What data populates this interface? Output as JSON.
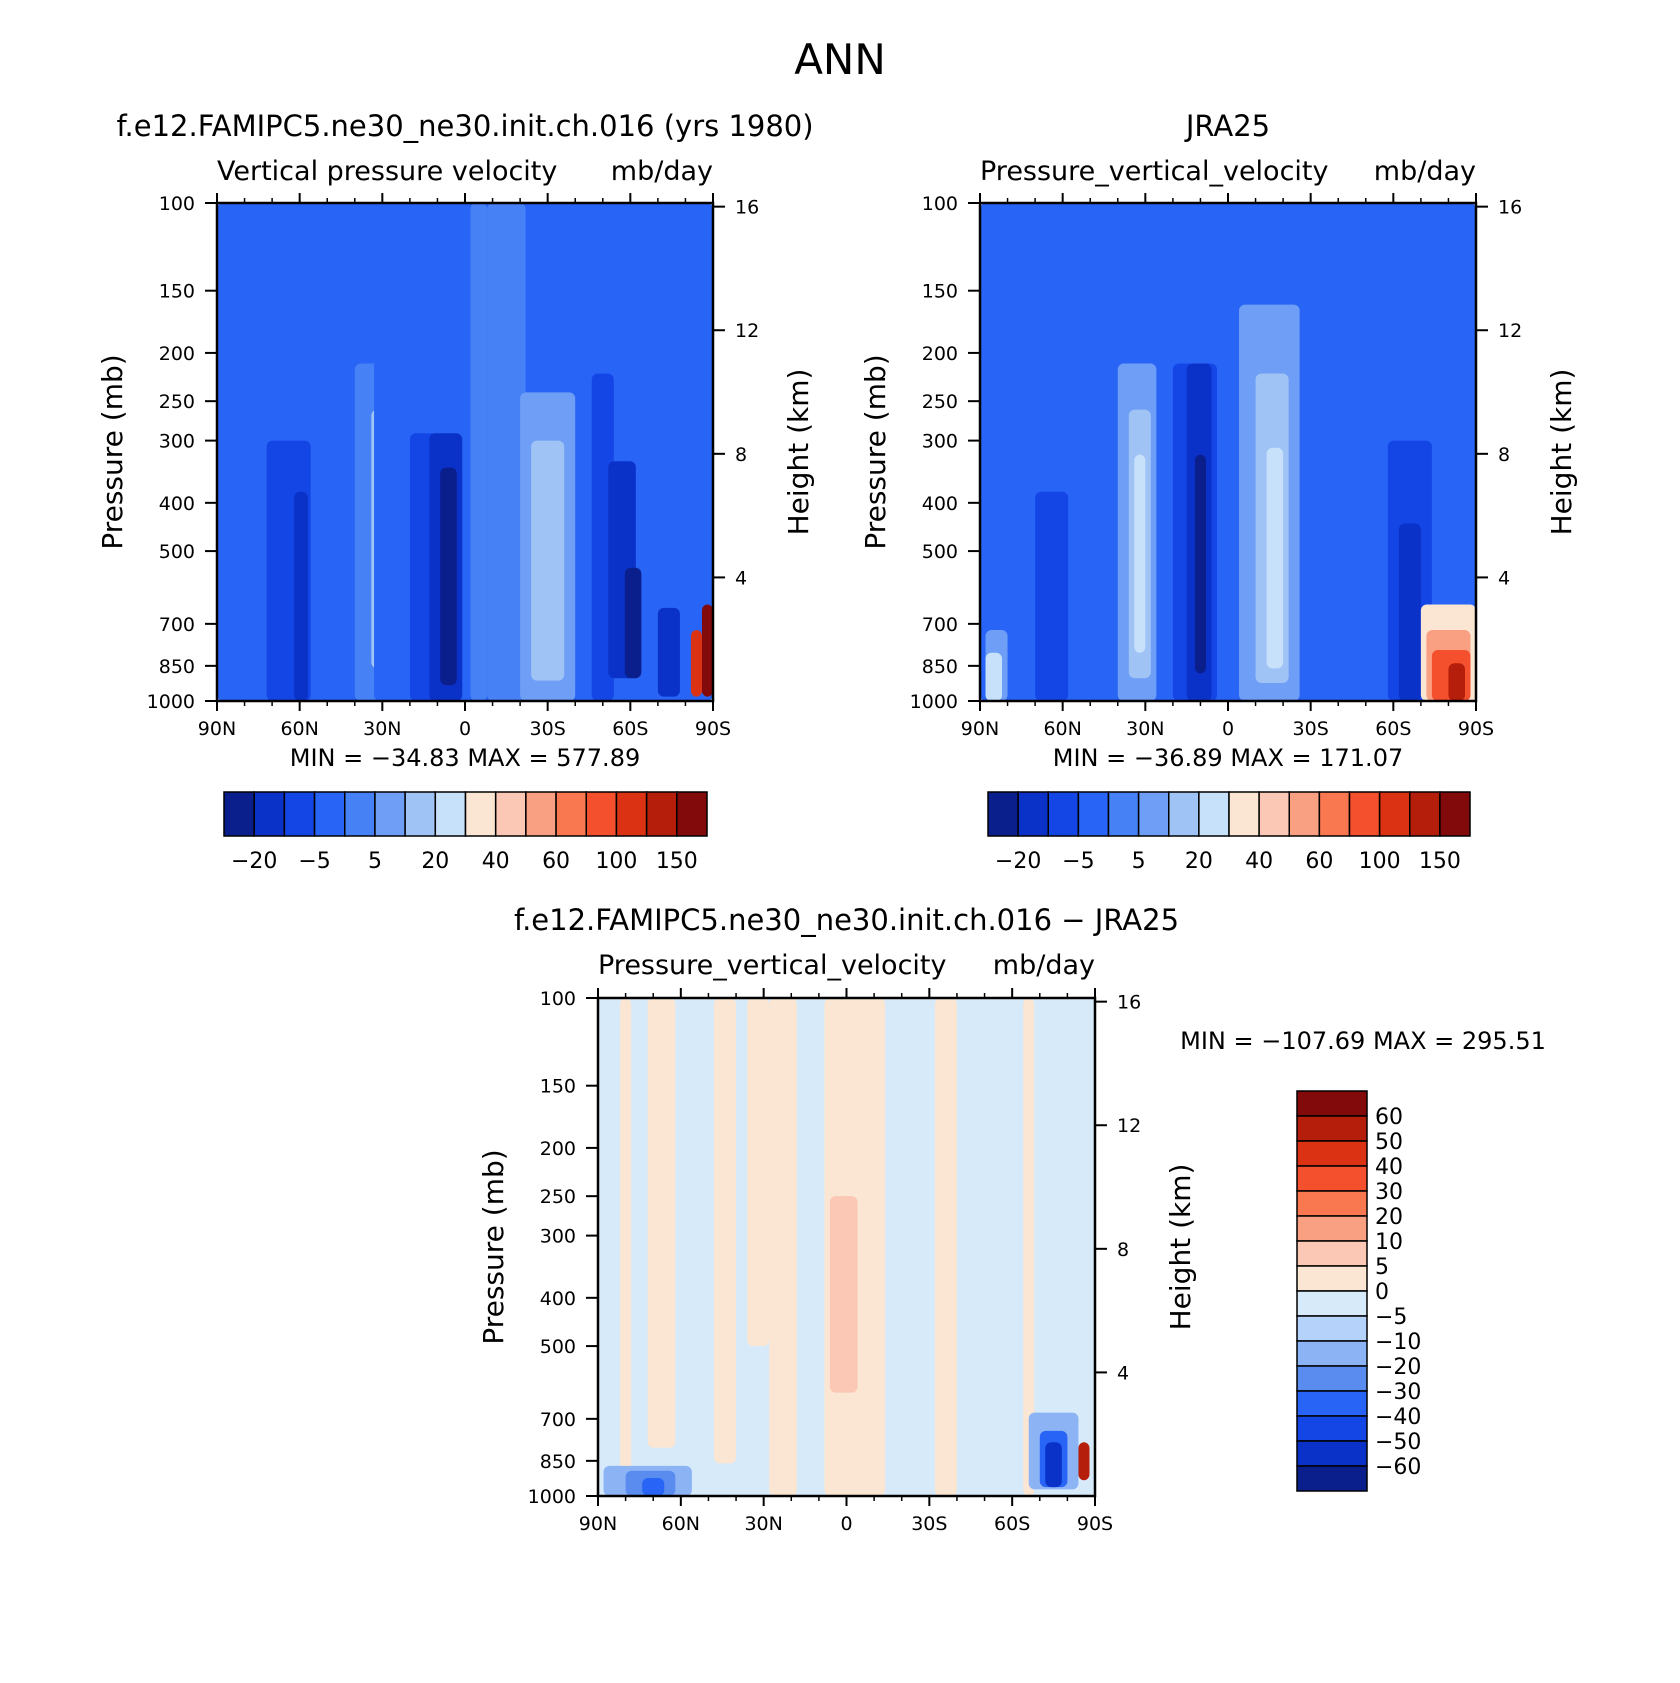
{
  "figure_title": "ANN",
  "chart_data": [
    {
      "type": "heatmap",
      "panel_title": "f.e12.FAMIPC5.ne30_ne30.init.ch.016 (yrs 1980)",
      "left_subtitle": "Vertical pressure velocity",
      "right_subtitle": "mb/day",
      "ylabel": "Pressure (mb)",
      "y2label": "Height (km)",
      "x_ticks": [
        "90N",
        "60N",
        "30N",
        "0",
        "30S",
        "60S",
        "90S"
      ],
      "y_ticks": [
        "100",
        "150",
        "200",
        "250",
        "300",
        "400",
        "500",
        "700",
        "850",
        "1000"
      ],
      "y2_ticks": [
        "16",
        "12",
        "8",
        "4"
      ],
      "stats": {
        "min_label": "MIN",
        "min_value": "−34.83",
        "max_label": "MAX",
        "max_value": "577.89"
      },
      "colorbar_labels": [
        "−20",
        "−5",
        "5",
        "20",
        "40",
        "60",
        "100",
        "150"
      ],
      "colors": [
        "#0a1e8c",
        "#0a32c8",
        "#1446e6",
        "#2864f5",
        "#4682f5",
        "#6e9ef5",
        "#a0c3f5",
        "#c8e1fa",
        "#fae6d2",
        "#fac8b4",
        "#faa082",
        "#fa7850",
        "#f5502d",
        "#dc3214",
        "#b41e0a",
        "#820a0a"
      ]
    },
    {
      "type": "heatmap",
      "panel_title": "JRA25",
      "left_subtitle": "Pressure_vertical_velocity",
      "right_subtitle": "mb/day",
      "ylabel": "Pressure (mb)",
      "y2label": "Height (km)",
      "x_ticks": [
        "90N",
        "60N",
        "30N",
        "0",
        "30S",
        "60S",
        "90S"
      ],
      "y_ticks": [
        "100",
        "150",
        "200",
        "250",
        "300",
        "400",
        "500",
        "700",
        "850",
        "1000"
      ],
      "y2_ticks": [
        "16",
        "12",
        "8",
        "4"
      ],
      "stats": {
        "min_label": "MIN",
        "min_value": "−36.89",
        "max_label": "MAX",
        "max_value": "171.07"
      },
      "colorbar_labels": [
        "−20",
        "−5",
        "5",
        "20",
        "40",
        "60",
        "100",
        "150"
      ],
      "colors": [
        "#0a1e8c",
        "#0a32c8",
        "#1446e6",
        "#2864f5",
        "#4682f5",
        "#6e9ef5",
        "#a0c3f5",
        "#c8e1fa",
        "#fae6d2",
        "#fac8b4",
        "#faa082",
        "#fa7850",
        "#f5502d",
        "#dc3214",
        "#b41e0a",
        "#820a0a"
      ]
    },
    {
      "type": "heatmap",
      "panel_title": "f.e12.FAMIPC5.ne30_ne30.init.ch.016 − JRA25",
      "left_subtitle": "Pressure_vertical_velocity",
      "right_subtitle": "mb/day",
      "ylabel": "Pressure (mb)",
      "y2label": "Height (km)",
      "x_ticks": [
        "90N",
        "60N",
        "30N",
        "0",
        "30S",
        "60S",
        "90S"
      ],
      "y_ticks": [
        "100",
        "150",
        "200",
        "250",
        "300",
        "400",
        "500",
        "700",
        "850",
        "1000"
      ],
      "y2_ticks": [
        "16",
        "12",
        "8",
        "4"
      ],
      "stats": {
        "min_label": "MIN",
        "min_value": "−107.69",
        "max_label": "MAX",
        "max_value": "295.51"
      },
      "colorbar_labels": [
        "60",
        "50",
        "40",
        "30",
        "20",
        "10",
        "5",
        "0",
        "−5",
        "−10",
        "−20",
        "−30",
        "−40",
        "−50",
        "−60"
      ],
      "colors": [
        "#820a0a",
        "#b41e0a",
        "#dc3214",
        "#f5502d",
        "#fa7850",
        "#faa082",
        "#fac8b4",
        "#fae6d2",
        "#d7eafa",
        "#b4d2fa",
        "#8cb4f5",
        "#5a8cf0",
        "#2864f5",
        "#1446e6",
        "#0a32c8",
        "#0a1e8c"
      ]
    }
  ]
}
